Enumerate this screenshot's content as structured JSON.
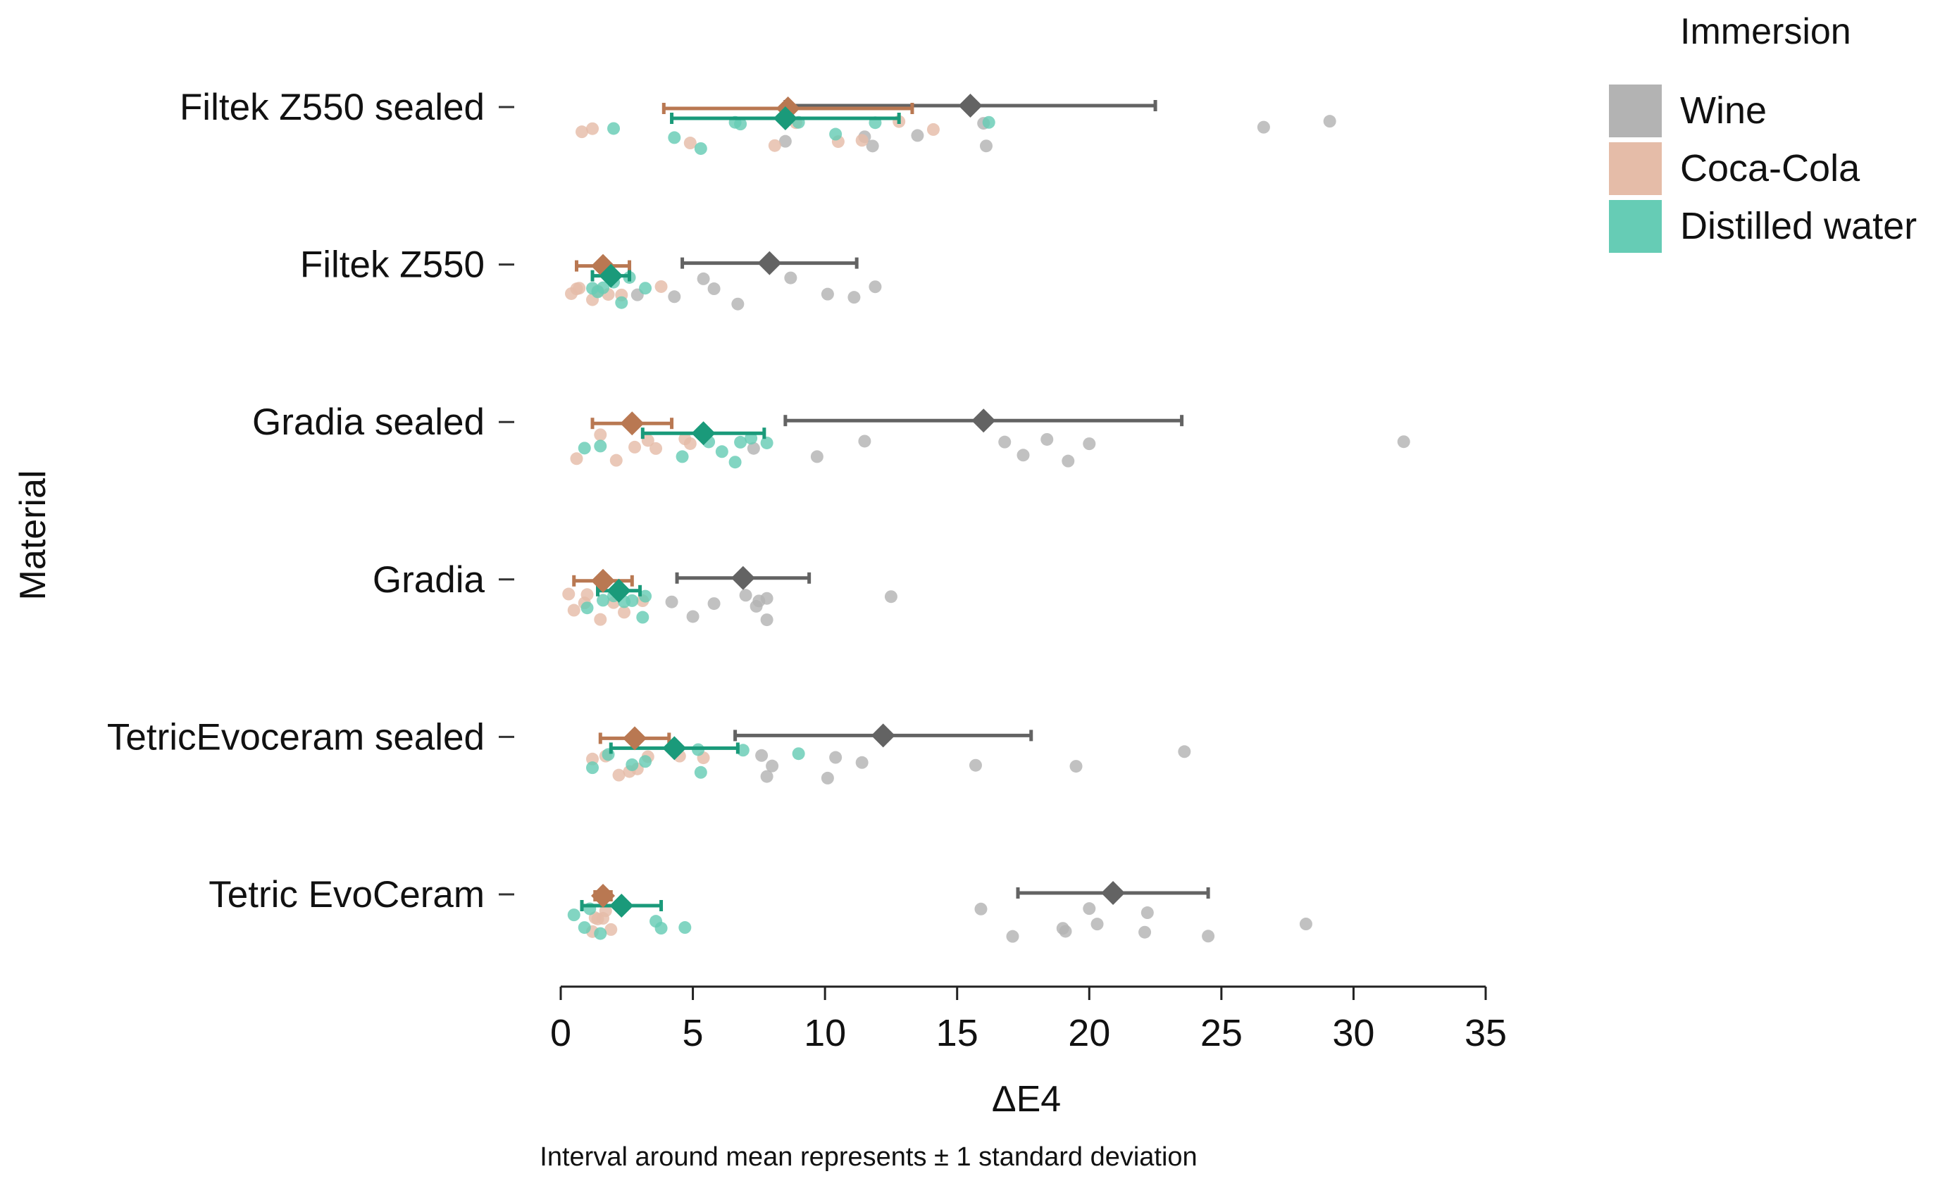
{
  "chart_data": {
    "type": "scatter",
    "title": "",
    "xlabel": "ΔE4",
    "ylabel": "Material",
    "xlim": [
      0,
      35
    ],
    "xticks": [
      0,
      5,
      10,
      15,
      20,
      25,
      30,
      35
    ],
    "grid": false,
    "note": "Interval around mean represents ± 1 standard deviation",
    "legend": {
      "title": "Immersion",
      "position": "top-right",
      "entries": [
        {
          "key": "wine",
          "label": "Wine",
          "color": "#b3b3b3"
        },
        {
          "key": "cola",
          "label": "Coca-Cola",
          "color": "#e5bca8"
        },
        {
          "key": "water",
          "label": "Distilled water",
          "color": "#66ccb5"
        }
      ]
    },
    "mean_colors": {
      "wine": "#636363",
      "cola": "#b97852",
      "water": "#1a9a7a"
    },
    "categories": [
      {
        "label": "Filtek Z550 sealed",
        "groups": {
          "wine": {
            "mean": 15.5,
            "sd": 7.0,
            "points": [
              8.5,
              11.5,
              11.8,
              13.5,
              16.0,
              16.1,
              26.6,
              29.1
            ]
          },
          "cola": {
            "mean": 8.6,
            "sd": 4.7,
            "points": [
              0.8,
              1.2,
              4.9,
              8.1,
              8.9,
              10.5,
              11.4,
              12.8,
              14.1
            ]
          },
          "water": {
            "mean": 8.5,
            "sd": 4.3,
            "points": [
              2.0,
              4.3,
              5.3,
              6.6,
              6.8,
              9.0,
              10.4,
              11.9,
              16.2
            ]
          }
        }
      },
      {
        "label": "Filtek Z550",
        "groups": {
          "wine": {
            "mean": 7.9,
            "sd": 3.3,
            "points": [
              2.9,
              4.3,
              5.4,
              5.8,
              6.7,
              8.7,
              10.1,
              11.1,
              11.9
            ]
          },
          "cola": {
            "mean": 1.6,
            "sd": 1.0,
            "points": [
              0.4,
              0.6,
              0.7,
              1.2,
              1.4,
              1.8,
              2.3,
              3.8
            ]
          },
          "water": {
            "mean": 1.9,
            "sd": 0.7,
            "points": [
              1.2,
              1.4,
              1.6,
              2.0,
              2.3,
              2.6,
              3.2
            ]
          }
        }
      },
      {
        "label": "Gradia sealed",
        "groups": {
          "wine": {
            "mean": 16.0,
            "sd": 7.5,
            "points": [
              7.3,
              9.7,
              11.5,
              16.8,
              17.5,
              18.4,
              19.2,
              20.0,
              31.9
            ]
          },
          "cola": {
            "mean": 2.7,
            "sd": 1.5,
            "points": [
              0.6,
              1.5,
              2.1,
              2.8,
              3.3,
              3.6,
              4.7,
              4.9
            ]
          },
          "water": {
            "mean": 5.4,
            "sd": 2.3,
            "points": [
              0.9,
              1.5,
              4.6,
              5.6,
              6.1,
              6.6,
              6.8,
              7.2,
              7.8
            ]
          }
        }
      },
      {
        "label": "Gradia",
        "groups": {
          "wine": {
            "mean": 6.9,
            "sd": 2.5,
            "points": [
              4.2,
              5.0,
              5.8,
              7.0,
              7.4,
              7.5,
              7.8,
              7.8,
              12.5
            ]
          },
          "cola": {
            "mean": 1.6,
            "sd": 1.1,
            "points": [
              0.3,
              0.5,
              0.9,
              1.0,
              1.5,
              2.0,
              2.4,
              3.1
            ]
          },
          "water": {
            "mean": 2.2,
            "sd": 0.8,
            "points": [
              1.0,
              1.6,
              2.0,
              2.4,
              2.7,
              3.1,
              3.2
            ]
          }
        }
      },
      {
        "label": "TetricEvoceram sealed",
        "groups": {
          "wine": {
            "mean": 12.2,
            "sd": 5.6,
            "points": [
              7.6,
              7.8,
              8.0,
              10.1,
              10.4,
              11.4,
              15.7,
              19.5,
              23.6
            ]
          },
          "cola": {
            "mean": 2.8,
            "sd": 1.3,
            "points": [
              1.2,
              1.7,
              2.2,
              2.6,
              2.9,
              3.3,
              4.5,
              5.4
            ]
          },
          "water": {
            "mean": 4.3,
            "sd": 2.4,
            "points": [
              1.2,
              1.8,
              2.7,
              3.2,
              5.2,
              5.3,
              6.9,
              9.0
            ]
          }
        }
      },
      {
        "label": "Tetric EvoCeram",
        "groups": {
          "wine": {
            "mean": 20.9,
            "sd": 3.6,
            "points": [
              15.9,
              17.1,
              19.0,
              19.1,
              20.0,
              20.3,
              22.1,
              22.2,
              24.5,
              28.2
            ]
          },
          "cola": {
            "mean": 1.6,
            "sd": 0.3,
            "points": [
              1.2,
              1.3,
              1.4,
              1.6,
              1.7,
              1.9
            ]
          },
          "water": {
            "mean": 2.3,
            "sd": 1.5,
            "points": [
              0.5,
              0.9,
              1.1,
              1.5,
              3.6,
              3.8,
              4.7
            ]
          }
        }
      }
    ]
  }
}
